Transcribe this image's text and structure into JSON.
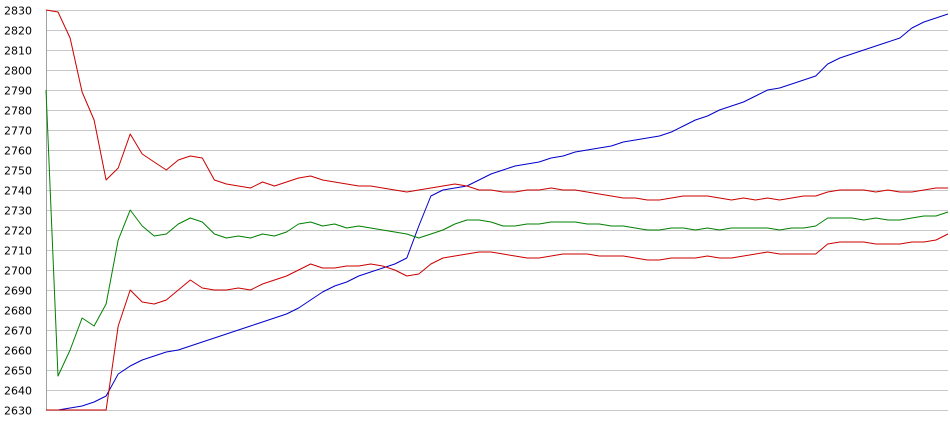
{
  "chart_data": {
    "type": "line",
    "title": "",
    "xlabel": "",
    "ylabel": "",
    "ylim": [
      2630,
      2830
    ],
    "yticks": [
      2830,
      2820,
      2810,
      2800,
      2790,
      2780,
      2770,
      2760,
      2750,
      2740,
      2730,
      2720,
      2710,
      2700,
      2690,
      2680,
      2670,
      2660,
      2650,
      2640,
      2630
    ],
    "grid": true,
    "legend": "none",
    "x_count": 76,
    "series": [
      {
        "color": "#0000cc",
        "values": [
          2630,
          2630,
          2631,
          2632,
          2634,
          2637,
          2648,
          2652,
          2655,
          2657,
          2659,
          2660,
          2662,
          2664,
          2666,
          2668,
          2670,
          2672,
          2674,
          2676,
          2678,
          2681,
          2685,
          2689,
          2692,
          2694,
          2697,
          2699,
          2701,
          2703,
          2706,
          2722,
          2737,
          2740,
          2741,
          2742,
          2745,
          2748,
          2750,
          2752,
          2753,
          2754,
          2756,
          2757,
          2759,
          2760,
          2761,
          2762,
          2764,
          2765,
          2766,
          2767,
          2769,
          2772,
          2775,
          2777,
          2780,
          2782,
          2784,
          2787,
          2790,
          2791,
          2793,
          2795,
          2797,
          2803,
          2806,
          2808,
          2810,
          2812,
          2814,
          2816,
          2821,
          2824,
          2826,
          2828
        ]
      },
      {
        "color": "#cc0000",
        "values": [
          2830,
          2829,
          2816,
          2789,
          2775,
          2745,
          2751,
          2768,
          2758,
          2754,
          2750,
          2755,
          2757,
          2756,
          2745,
          2743,
          2742,
          2741,
          2744,
          2742,
          2744,
          2746,
          2747,
          2745,
          2744,
          2743,
          2742,
          2742,
          2741,
          2740,
          2739,
          2740,
          2741,
          2742,
          2743,
          2742,
          2740,
          2740,
          2739,
          2739,
          2740,
          2740,
          2741,
          2740,
          2740,
          2739,
          2738,
          2737,
          2736,
          2736,
          2735,
          2735,
          2736,
          2737,
          2737,
          2737,
          2736,
          2735,
          2736,
          2735,
          2736,
          2735,
          2736,
          2737,
          2737,
          2739,
          2740,
          2740,
          2740,
          2739,
          2740,
          2739,
          2739,
          2740,
          2741,
          2741
        ]
      },
      {
        "color": "#008000",
        "values": [
          2790,
          2647,
          2660,
          2676,
          2672,
          2683,
          2715,
          2730,
          2722,
          2717,
          2718,
          2723,
          2726,
          2724,
          2718,
          2716,
          2717,
          2716,
          2718,
          2717,
          2719,
          2723,
          2724,
          2722,
          2723,
          2721,
          2722,
          2721,
          2720,
          2719,
          2718,
          2716,
          2718,
          2720,
          2723,
          2725,
          2725,
          2724,
          2722,
          2722,
          2723,
          2723,
          2724,
          2724,
          2724,
          2723,
          2723,
          2722,
          2722,
          2721,
          2720,
          2720,
          2721,
          2721,
          2720,
          2721,
          2720,
          2721,
          2721,
          2721,
          2721,
          2720,
          2721,
          2721,
          2722,
          2726,
          2726,
          2726,
          2725,
          2726,
          2725,
          2725,
          2726,
          2727,
          2727,
          2729
        ]
      },
      {
        "color": "#cc0000",
        "values": [
          2630,
          2630,
          2630,
          2630,
          2630,
          2630,
          2672,
          2690,
          2684,
          2683,
          2685,
          2690,
          2695,
          2691,
          2690,
          2690,
          2691,
          2690,
          2693,
          2695,
          2697,
          2700,
          2703,
          2701,
          2701,
          2702,
          2702,
          2703,
          2702,
          2700,
          2697,
          2698,
          2703,
          2706,
          2707,
          2708,
          2709,
          2709,
          2708,
          2707,
          2706,
          2706,
          2707,
          2708,
          2708,
          2708,
          2707,
          2707,
          2707,
          2706,
          2705,
          2705,
          2706,
          2706,
          2706,
          2707,
          2706,
          2706,
          2707,
          2708,
          2709,
          2708,
          2708,
          2708,
          2708,
          2713,
          2714,
          2714,
          2714,
          2713,
          2713,
          2713,
          2714,
          2714,
          2715,
          2718
        ]
      }
    ]
  }
}
